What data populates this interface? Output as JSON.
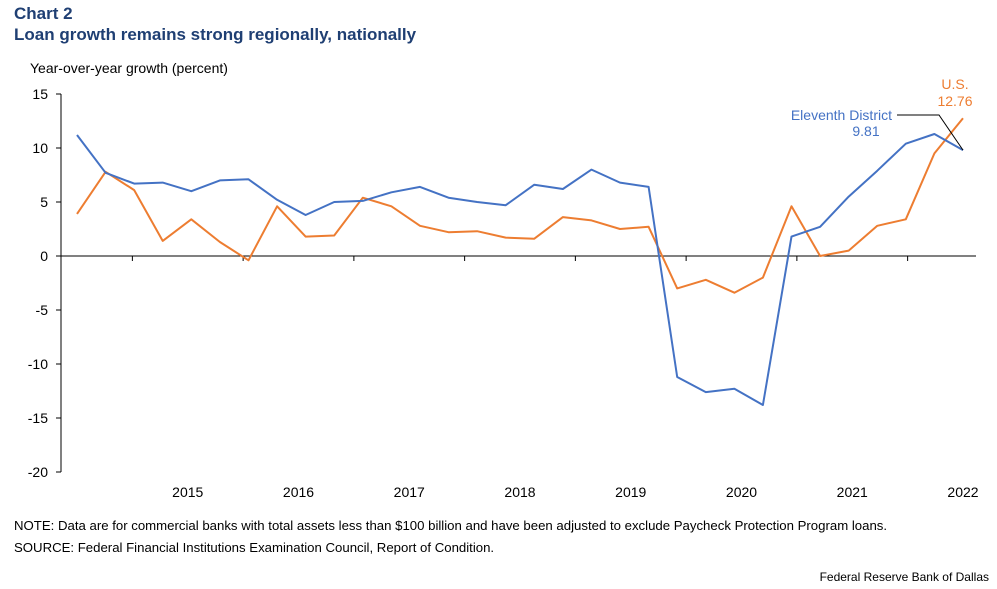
{
  "header": {
    "chart_number": "Chart 2",
    "title": "Loan growth remains strong regionally, nationally"
  },
  "footer": {
    "note": "NOTE: Data are for commercial banks with total assets less than $100 billion and have been adjusted to exclude Paycheck Protection Program loans.",
    "source": "SOURCE: Federal Financial Institutions Examination Council, Report of Condition.",
    "credit": "Federal Reserve Bank of Dallas"
  },
  "colors": {
    "eleventh_district": "#4472c4",
    "us": "#ed7d31",
    "title": "#1f3f73"
  },
  "chart_data": {
    "type": "line",
    "ylabel": "Year-over-year growth (percent)",
    "ylim": [
      -20,
      15
    ],
    "yticks": [
      15,
      10,
      5,
      0,
      -5,
      -10,
      -15,
      -20
    ],
    "year_labels": [
      "2015",
      "2016",
      "2017",
      "2018",
      "2019",
      "2020",
      "2021",
      "2022"
    ],
    "x_start_year": 2014.5,
    "x_end_year": 2022.5,
    "series": [
      {
        "name": "Eleventh District",
        "label_name": "Eleventh District",
        "label_value": "9.81",
        "values": [
          11.2,
          7.7,
          6.7,
          6.8,
          6.0,
          7.0,
          7.1,
          5.2,
          3.8,
          5.0,
          5.1,
          5.9,
          6.4,
          5.4,
          5.0,
          4.7,
          6.6,
          6.2,
          8.0,
          6.8,
          6.4,
          -11.2,
          -12.6,
          -12.3,
          -13.8,
          1.8,
          2.7,
          5.5,
          7.9,
          10.4,
          11.3,
          9.81
        ]
      },
      {
        "name": "U.S.",
        "label_name": "U.S.",
        "label_value": "12.76",
        "values": [
          3.9,
          7.8,
          6.1,
          1.4,
          3.4,
          1.3,
          -0.4,
          4.6,
          1.8,
          1.9,
          5.4,
          4.6,
          2.8,
          2.2,
          2.3,
          1.7,
          1.6,
          3.6,
          3.3,
          2.5,
          2.7,
          -3.0,
          -2.2,
          -3.4,
          -2.0,
          4.6,
          0.0,
          0.5,
          2.8,
          3.4,
          9.5,
          12.76
        ]
      }
    ]
  }
}
